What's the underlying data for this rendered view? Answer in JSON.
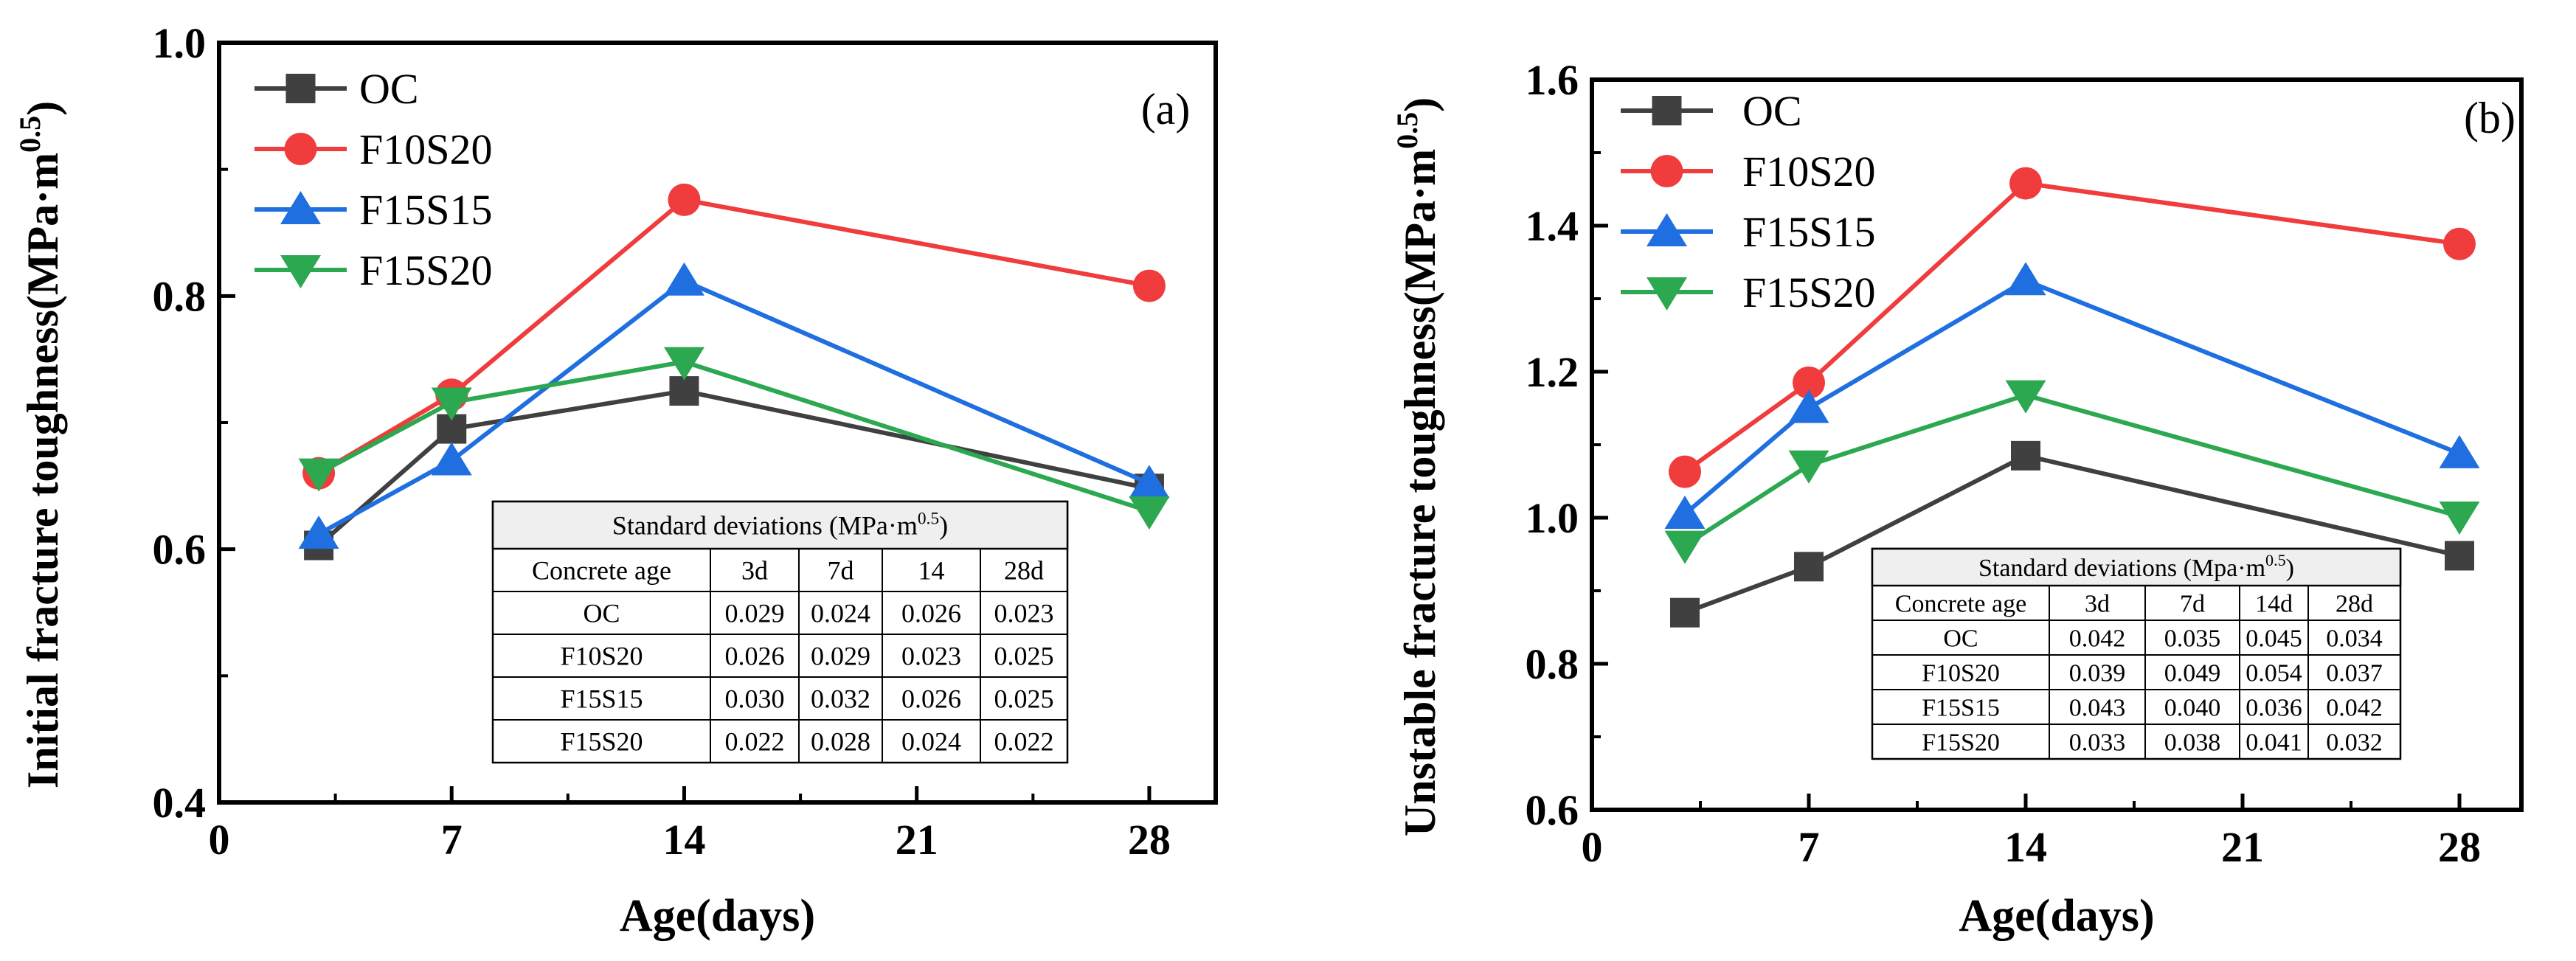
{
  "figure_labels": {
    "sup": "0.5"
  },
  "chart_data": [
    {
      "type": "line",
      "panel_label": "(a)",
      "xlabel": "Age(days)",
      "ylabel": "Initial fracture toughness(MPa·m",
      "ylabel_sup": "0.5",
      "ylabel_close": ")",
      "xlim": [
        0,
        30
      ],
      "ylim": [
        0.4,
        1.0
      ],
      "xticks": [
        0,
        7,
        14,
        21,
        28
      ],
      "xtick_labels": [
        "0",
        "7",
        "14",
        "21",
        "28"
      ],
      "yticks": [
        0.4,
        0.6,
        0.8,
        1.0
      ],
      "ytick_labels": [
        "0.4",
        "0.6",
        "0.8",
        "1.0"
      ],
      "y_minor_step": 0.1,
      "x": [
        3,
        7,
        14,
        28
      ],
      "legend_position": "top-left",
      "series": [
        {
          "name": "OC",
          "marker": "square",
          "color": "#404040",
          "values": [
            0.603,
            0.695,
            0.725,
            0.648
          ]
        },
        {
          "name": "F10S20",
          "marker": "circle",
          "color": "#f03c3c",
          "values": [
            0.66,
            0.722,
            0.876,
            0.808
          ]
        },
        {
          "name": "F15S15",
          "marker": "triangle-up",
          "color": "#1f6fe0",
          "values": [
            0.612,
            0.67,
            0.812,
            0.652
          ]
        },
        {
          "name": "F15S20",
          "marker": "triangle-down",
          "color": "#2ca850",
          "values": [
            0.66,
            0.716,
            0.748,
            0.63
          ]
        }
      ],
      "table": {
        "title": "Standard deviations (MPa·m",
        "title_sup": "0.5",
        "title_close": ")",
        "header": [
          "Concrete age",
          "3d",
          "7d",
          "14",
          "28d"
        ],
        "rows": [
          [
            "OC",
            "0.029",
            "0.024",
            "0.026",
            "0.023"
          ],
          [
            "F10S20",
            "0.026",
            "0.029",
            "0.023",
            "0.025"
          ],
          [
            "F15S15",
            "0.030",
            "0.032",
            "0.026",
            "0.025"
          ],
          [
            "F15S20",
            "0.022",
            "0.028",
            "0.024",
            "0.022"
          ]
        ]
      }
    },
    {
      "type": "line",
      "panel_label": "(b)",
      "xlabel": "Age(days)",
      "ylabel": "Unstable fracture toughness(MPa·m",
      "ylabel_sup": "0.5",
      "ylabel_close": ")",
      "xlim": [
        0,
        30
      ],
      "ylim": [
        0.6,
        1.6
      ],
      "xticks": [
        0,
        7,
        14,
        21,
        28
      ],
      "xtick_labels": [
        "0",
        "7",
        "14",
        "21",
        "28"
      ],
      "yticks": [
        0.6,
        0.8,
        1.0,
        1.2,
        1.4,
        1.6
      ],
      "ytick_labels": [
        "0.6",
        "0.8",
        "1.0",
        "1.2",
        "1.4",
        "1.6"
      ],
      "y_minor_step": 0.1,
      "x": [
        3,
        7,
        14,
        28
      ],
      "legend_position": "top-left",
      "series": [
        {
          "name": "OC",
          "marker": "square",
          "color": "#404040",
          "values": [
            0.87,
            0.933,
            1.085,
            0.948
          ]
        },
        {
          "name": "F10S20",
          "marker": "circle",
          "color": "#f03c3c",
          "values": [
            1.063,
            1.185,
            1.458,
            1.375
          ]
        },
        {
          "name": "F15S15",
          "marker": "triangle-up",
          "color": "#1f6fe0",
          "values": [
            1.005,
            1.15,
            1.325,
            1.088
          ]
        },
        {
          "name": "F15S20",
          "marker": "triangle-down",
          "color": "#2ca850",
          "values": [
            0.962,
            1.072,
            1.168,
            1.002
          ]
        }
      ],
      "table": {
        "title": "Standard deviations (Mpa·m",
        "title_sup": "0.5",
        "title_close": ")",
        "header": [
          "Concrete age",
          "3d",
          "7d",
          "14d",
          "28d"
        ],
        "rows": [
          [
            "OC",
            "0.042",
            "0.035",
            "0.045",
            "0.034"
          ],
          [
            "F10S20",
            "0.039",
            "0.049",
            "0.054",
            "0.037"
          ],
          [
            "F15S15",
            "0.043",
            "0.040",
            "0.036",
            "0.042"
          ],
          [
            "F15S20",
            "0.033",
            "0.038",
            "0.041",
            "0.032"
          ]
        ]
      }
    }
  ]
}
